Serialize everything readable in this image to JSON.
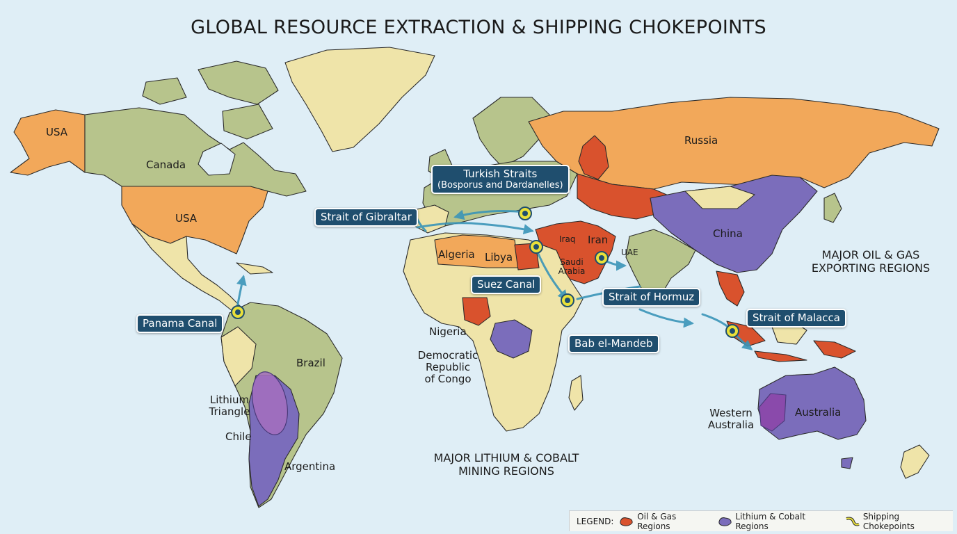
{
  "title": "GLOBAL RESOURCE EXTRACTION & SHIPPING CHOKEPOINTS",
  "colors": {
    "ocean": "#dfeef6",
    "land_default": "#efe4a9",
    "land_green": "#b7c48c",
    "major_country_orange": "#f2a85a",
    "oil_gas": "#d9522d",
    "lithium_cobalt": "#7b6dbb",
    "lithium_triangle": "#a56fbe",
    "chokepoint_badge": "#1f4e6e",
    "marker_ring": "#e9e03a",
    "shipping_route": "#3a95b8"
  },
  "country_labels": {
    "usa_alaska": "USA",
    "canada": "Canada",
    "usa": "USA",
    "russia": "Russia",
    "china": "China",
    "algeria": "Algeria",
    "libya": "Libya",
    "iraq": "Iraq",
    "iran": "Iran",
    "saudi_arabia": "Saudi\nArabia",
    "uae": "UAE",
    "nigeria": "Nigeria",
    "drc": "Democratic\nRepublic\nof Congo",
    "brazil": "Brazil",
    "lithium_triangle": "Lithium\nTriangle",
    "chile": "Chile",
    "argentina": "Argentina",
    "western_australia": "Western\nAustralia",
    "australia": "Australia"
  },
  "region_captions": {
    "oil_gas": "MAJOR OIL & GAS\nEXPORTING REGIONS",
    "lithium_cobalt": "MAJOR LITHIUM & COBALT\nMINING REGIONS"
  },
  "chokepoints": {
    "turkish_straits": {
      "name": "Turkish Straits",
      "sub": "(Bosporus and Dardanelles)"
    },
    "gibraltar": "Strait of Gibraltar",
    "suez": "Suez Canal",
    "hormuz": "Strait of Hormuz",
    "bab_el_mandeb": "Bab el-Mandeb",
    "malacca": "Strait of Malacca",
    "panama": "Panama Canal"
  },
  "legend": {
    "heading": "LEGEND:",
    "items": [
      {
        "label": "Oil & Gas Regions",
        "icon": "oil-gas-swatch-icon"
      },
      {
        "label": "Lithium & Cobalt Regions",
        "icon": "lithium-cobalt-swatch-icon"
      },
      {
        "label": "Shipping Chokepoints",
        "icon": "chokepoint-route-icon"
      }
    ]
  }
}
